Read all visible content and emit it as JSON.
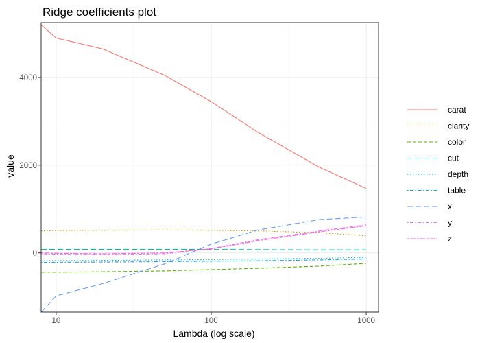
{
  "chart_data": {
    "type": "line",
    "title": "Ridge coefficients plot",
    "xlabel": "Lambda (log scale)",
    "ylabel": "value",
    "x_scale": "log10",
    "xlim": [
      8,
      1200
    ],
    "ylim": [
      -1350,
      5250
    ],
    "x_ticks": [
      10,
      100,
      1000
    ],
    "x_tick_labels": [
      "10",
      "100",
      "1000"
    ],
    "y_ticks": [
      0,
      2000,
      4000
    ],
    "y_tick_labels": [
      "0",
      "2000",
      "4000"
    ],
    "grid": true,
    "legend_position": "right",
    "x": [
      8,
      10,
      20,
      50,
      100,
      200,
      500,
      1000
    ],
    "series": [
      {
        "name": "carat",
        "color": "#F8766D",
        "dash": "solid",
        "values": [
          5200,
          4900,
          4650,
          4050,
          3450,
          2750,
          1950,
          1470
        ]
      },
      {
        "name": "clarity",
        "color": "#C49A00",
        "dash": "dotted",
        "values": [
          500,
          510,
          515,
          520,
          515,
          500,
          460,
          390
        ]
      },
      {
        "name": "color",
        "color": "#53B400",
        "dash": "dashed",
        "values": [
          -440,
          -440,
          -430,
          -410,
          -380,
          -350,
          -300,
          -240
        ]
      },
      {
        "name": "cut",
        "color": "#00C094",
        "dash": "longdash",
        "values": [
          80,
          80,
          80,
          80,
          80,
          75,
          70,
          70
        ]
      },
      {
        "name": "depth",
        "color": "#00B6EB",
        "dash": "dotted",
        "values": [
          -180,
          -175,
          -170,
          -160,
          -150,
          -140,
          -120,
          -100
        ]
      },
      {
        "name": "table",
        "color": "#06A4FF",
        "dash": "dotdash",
        "values": [
          -220,
          -215,
          -210,
          -200,
          -190,
          -180,
          -160,
          -140
        ]
      },
      {
        "name": "x",
        "color": "#619CFF",
        "dash": "longdash",
        "values": [
          -1350,
          -980,
          -700,
          -250,
          200,
          520,
          760,
          820
        ]
      },
      {
        "name": "y",
        "color": "#DF70F8",
        "dash": "dotdash",
        "values": [
          -20,
          -30,
          -40,
          -20,
          100,
          300,
          500,
          640
        ]
      },
      {
        "name": "z",
        "color": "#FB61D7",
        "dash": "twodash",
        "values": [
          0,
          -10,
          -20,
          0,
          90,
          280,
          480,
          620
        ]
      }
    ]
  }
}
